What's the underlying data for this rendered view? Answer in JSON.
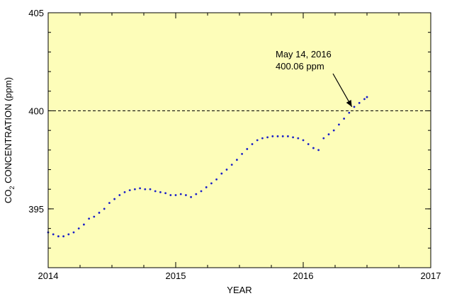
{
  "chart_data": {
    "type": "scatter",
    "title": "",
    "xlabel": "YEAR",
    "ylabel": {
      "pre": "CO",
      "sub": "2",
      "post": " CONCENTRATION (ppm)"
    },
    "xlim": [
      2014,
      2017
    ],
    "ylim": [
      392,
      405
    ],
    "xticks": [
      "2014",
      "2015",
      "2016",
      "2017"
    ],
    "yticks": [
      "395",
      "400",
      "405"
    ],
    "reference_line": {
      "y": 400,
      "style": "dashed"
    },
    "annotation": {
      "lines": [
        "May 14, 2016",
        "400.06 ppm"
      ],
      "x": 2016.37,
      "y": 400.06
    },
    "colors": {
      "background": "#fdfdb9",
      "points": "#1a1fc8",
      "frame": "#000000"
    },
    "series": [
      {
        "points": [
          [
            2014.0,
            393.8
          ],
          [
            2014.04,
            393.7
          ],
          [
            2014.08,
            393.6
          ],
          [
            2014.12,
            393.6
          ],
          [
            2014.16,
            393.7
          ],
          [
            2014.2,
            393.8
          ],
          [
            2014.24,
            394.0
          ],
          [
            2014.28,
            394.2
          ],
          [
            2014.32,
            394.5
          ],
          [
            2014.36,
            394.6
          ],
          [
            2014.4,
            394.8
          ],
          [
            2014.44,
            395.0
          ],
          [
            2014.48,
            395.3
          ],
          [
            2014.52,
            395.5
          ],
          [
            2014.56,
            395.7
          ],
          [
            2014.6,
            395.85
          ],
          [
            2014.64,
            395.95
          ],
          [
            2014.68,
            396.0
          ],
          [
            2014.72,
            396.05
          ],
          [
            2014.76,
            396.0
          ],
          [
            2014.8,
            396.0
          ],
          [
            2014.84,
            395.9
          ],
          [
            2014.88,
            395.85
          ],
          [
            2014.92,
            395.8
          ],
          [
            2014.96,
            395.7
          ],
          [
            2015.0,
            395.7
          ],
          [
            2015.04,
            395.75
          ],
          [
            2015.08,
            395.7
          ],
          [
            2015.12,
            395.6
          ],
          [
            2015.16,
            395.75
          ],
          [
            2015.2,
            395.9
          ],
          [
            2015.24,
            396.1
          ],
          [
            2015.28,
            396.3
          ],
          [
            2015.32,
            396.5
          ],
          [
            2015.36,
            396.8
          ],
          [
            2015.4,
            397.0
          ],
          [
            2015.44,
            397.25
          ],
          [
            2015.48,
            397.5
          ],
          [
            2015.52,
            397.8
          ],
          [
            2015.56,
            398.05
          ],
          [
            2015.6,
            398.3
          ],
          [
            2015.64,
            398.5
          ],
          [
            2015.68,
            398.6
          ],
          [
            2015.72,
            398.65
          ],
          [
            2015.76,
            398.7
          ],
          [
            2015.8,
            398.7
          ],
          [
            2015.84,
            398.7
          ],
          [
            2015.88,
            398.7
          ],
          [
            2015.92,
            398.65
          ],
          [
            2015.96,
            398.6
          ],
          [
            2016.0,
            398.5
          ],
          [
            2016.04,
            398.3
          ],
          [
            2016.08,
            398.1
          ],
          [
            2016.12,
            398.0
          ],
          [
            2016.16,
            398.6
          ],
          [
            2016.2,
            398.8
          ],
          [
            2016.24,
            399.0
          ],
          [
            2016.28,
            399.3
          ],
          [
            2016.32,
            399.6
          ],
          [
            2016.36,
            399.9
          ],
          [
            2016.4,
            400.2
          ],
          [
            2016.44,
            400.4
          ],
          [
            2016.48,
            400.6
          ],
          [
            2016.5,
            400.7
          ]
        ]
      }
    ]
  }
}
